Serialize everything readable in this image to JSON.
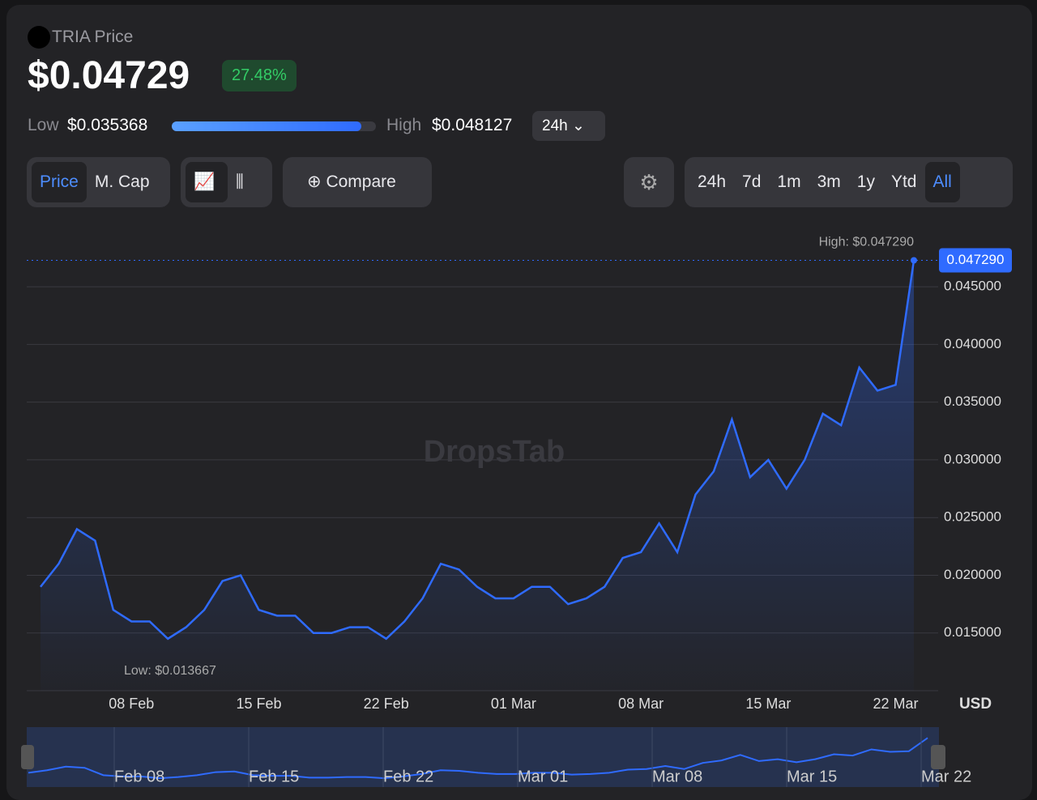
{
  "header": {
    "title": "TRIA Price",
    "price": "$0.04729",
    "change": "27.48%",
    "low_label": "Low",
    "low": "$0.035368",
    "high_label": "High",
    "high": "$0.048127",
    "period": "24h"
  },
  "controls": {
    "metrics": [
      "Price",
      "M. Cap"
    ],
    "compare": "Compare",
    "ranges": [
      "24h",
      "7d",
      "1m",
      "3m",
      "1y",
      "Ytd",
      "All"
    ]
  },
  "chart_data": {
    "type": "line",
    "watermark": "DropsTab",
    "currency": "USD",
    "x": [
      "03 Feb",
      "04 Feb",
      "05 Feb",
      "06 Feb",
      "07 Feb",
      "08 Feb",
      "09 Feb",
      "10 Feb",
      "11 Feb",
      "12 Feb",
      "13 Feb",
      "14 Feb",
      "15 Feb",
      "16 Feb",
      "17 Feb",
      "18 Feb",
      "19 Feb",
      "20 Feb",
      "21 Feb",
      "22 Feb",
      "23 Feb",
      "24 Feb",
      "25 Feb",
      "26 Feb",
      "27 Feb",
      "28 Feb",
      "01 Mar",
      "02 Mar",
      "03 Mar",
      "04 Mar",
      "05 Mar",
      "06 Mar",
      "07 Mar",
      "08 Mar",
      "09 Mar",
      "10 Mar",
      "11 Mar",
      "12 Mar",
      "13 Mar",
      "14 Mar",
      "15 Mar",
      "16 Mar",
      "17 Mar",
      "18 Mar",
      "19 Mar",
      "20 Mar",
      "21 Mar",
      "22 Mar",
      "23 Mar"
    ],
    "series": [
      {
        "name": "Price",
        "color": "#2f6bff",
        "values": [
          0.019,
          0.021,
          0.024,
          0.023,
          0.017,
          0.016,
          0.016,
          0.0145,
          0.0155,
          0.017,
          0.0195,
          0.02,
          0.017,
          0.0165,
          0.0165,
          0.015,
          0.015,
          0.0155,
          0.0155,
          0.0145,
          0.016,
          0.018,
          0.021,
          0.0205,
          0.019,
          0.018,
          0.018,
          0.019,
          0.019,
          0.0175,
          0.018,
          0.019,
          0.0215,
          0.022,
          0.0245,
          0.022,
          0.027,
          0.029,
          0.0335,
          0.0285,
          0.03,
          0.0275,
          0.03,
          0.034,
          0.033,
          0.038,
          0.036,
          0.0365,
          0.04729
        ]
      }
    ],
    "xticks": [
      "08 Feb",
      "15 Feb",
      "22 Feb",
      "01 Mar",
      "08 Mar",
      "15 Mar",
      "22 Mar"
    ],
    "ylim": [
      0.01,
      0.0495
    ],
    "yticks": [
      {
        "value": 0.015,
        "label": "0.015000"
      },
      {
        "value": 0.02,
        "label": "0.020000"
      },
      {
        "value": 0.025,
        "label": "0.025000"
      },
      {
        "value": 0.03,
        "label": "0.030000"
      },
      {
        "value": 0.035,
        "label": "0.035000"
      },
      {
        "value": 0.04,
        "label": "0.040000"
      },
      {
        "value": 0.045,
        "label": "0.045000"
      }
    ],
    "grid": true,
    "high_annotation": "High: $0.047290",
    "low_annotation": "Low: $0.013667",
    "last_label": "0.047290",
    "navigator_labels": [
      "Feb 08",
      "Feb 15",
      "Feb 22",
      "Mar 01",
      "Mar 08",
      "Mar 15",
      "Mar 22"
    ]
  }
}
